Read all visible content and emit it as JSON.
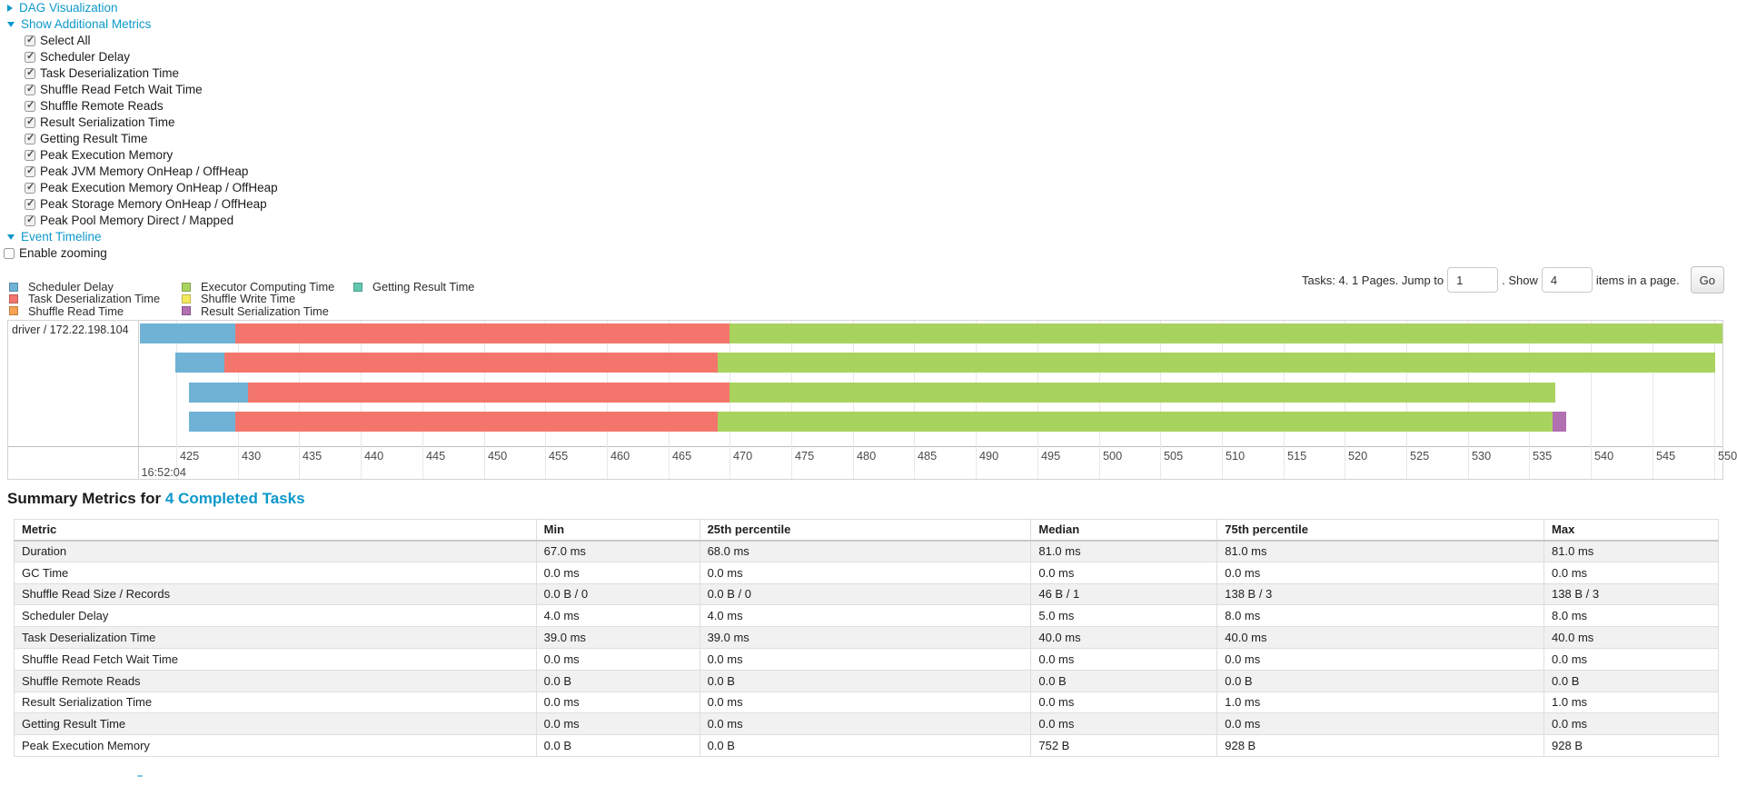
{
  "toggles": {
    "dag": "DAG Visualization",
    "metrics": "Show Additional Metrics",
    "timeline": "Event Timeline"
  },
  "metric_checkboxes": [
    "Select All",
    "Scheduler Delay",
    "Task Deserialization Time",
    "Shuffle Read Fetch Wait Time",
    "Shuffle Remote Reads",
    "Result Serialization Time",
    "Getting Result Time",
    "Peak Execution Memory",
    "Peak JVM Memory OnHeap / OffHeap",
    "Peak Execution Memory OnHeap / OffHeap",
    "Peak Storage Memory OnHeap / OffHeap",
    "Peak Pool Memory Direct / Mapped"
  ],
  "enable_zooming_label": "Enable zooming",
  "legend": {
    "columns": [
      [
        {
          "label": "Scheduler Delay",
          "color": "#6FB2D6"
        },
        {
          "label": "Task Deserialization Time",
          "color": "#F4756C"
        },
        {
          "label": "Shuffle Read Time",
          "color": "#F5A254"
        }
      ],
      [
        {
          "label": "Executor Computing Time",
          "color": "#A9D35F"
        },
        {
          "label": "Shuffle Write Time",
          "color": "#F4E95D"
        },
        {
          "label": "Result Serialization Time",
          "color": "#B26FB2"
        }
      ],
      [
        {
          "label": "Getting Result Time",
          "color": "#62C8B2"
        }
      ]
    ]
  },
  "pagination": {
    "prefix": "Tasks: 4. 1 Pages. Jump to",
    "jump_value": "1",
    "mid": ". Show",
    "show_value": "4",
    "suffix": "items in a page.",
    "go_label": "Go"
  },
  "chart_data": {
    "type": "timeline-gantt",
    "group_label": "driver / 172.22.198.104",
    "axis": {
      "unit": "ms within second 16:52:04",
      "tick_start": 425,
      "tick_end": 550,
      "tick_step": 5,
      "major_label": "16:52:04"
    },
    "colors": {
      "scheduler_delay": "#6FB2D6",
      "task_deserialization": "#F4756C",
      "shuffle_read": "#F5A254",
      "executor_computing": "#A9D35F",
      "shuffle_write": "#F4E95D",
      "result_serialization": "#B26FB2",
      "getting_result": "#62C8B2"
    },
    "tasks": [
      {
        "start": 421.5,
        "segments": [
          {
            "type": "scheduler_delay",
            "end": 429.8
          },
          {
            "type": "task_deserialization",
            "end": 470.0
          },
          {
            "type": "executor_computing",
            "end": 550.8
          }
        ]
      },
      {
        "start": 424.9,
        "segments": [
          {
            "type": "scheduler_delay",
            "end": 428.9
          },
          {
            "type": "task_deserialization",
            "end": 469.0
          },
          {
            "type": "executor_computing",
            "end": 550.1
          }
        ]
      },
      {
        "start": 426.0,
        "segments": [
          {
            "type": "scheduler_delay",
            "end": 430.8
          },
          {
            "type": "task_deserialization",
            "end": 470.0
          },
          {
            "type": "executor_computing",
            "end": 537.1
          }
        ]
      },
      {
        "start": 426.0,
        "segments": [
          {
            "type": "scheduler_delay",
            "end": 429.8
          },
          {
            "type": "task_deserialization",
            "end": 469.0
          },
          {
            "type": "executor_computing",
            "end": 536.9
          },
          {
            "type": "result_serialization",
            "end": 538.0
          }
        ]
      }
    ]
  },
  "summary": {
    "title_prefix": "Summary Metrics for",
    "title_link": "4 Completed Tasks",
    "table": {
      "headers": [
        "Metric",
        "Min",
        "25th percentile",
        "Median",
        "75th percentile",
        "Max"
      ],
      "rows": [
        [
          "Duration",
          "67.0 ms",
          "68.0 ms",
          "81.0 ms",
          "81.0 ms",
          "81.0 ms"
        ],
        [
          "GC Time",
          "0.0 ms",
          "0.0 ms",
          "0.0 ms",
          "0.0 ms",
          "0.0 ms"
        ],
        [
          "Shuffle Read Size / Records",
          "0.0 B / 0",
          "0.0 B / 0",
          "46 B / 1",
          "138 B / 3",
          "138 B / 3"
        ],
        [
          "Scheduler Delay",
          "4.0 ms",
          "4.0 ms",
          "5.0 ms",
          "8.0 ms",
          "8.0 ms"
        ],
        [
          "Task Deserialization Time",
          "39.0 ms",
          "39.0 ms",
          "40.0 ms",
          "40.0 ms",
          "40.0 ms"
        ],
        [
          "Shuffle Read Fetch Wait Time",
          "0.0 ms",
          "0.0 ms",
          "0.0 ms",
          "0.0 ms",
          "0.0 ms"
        ],
        [
          "Shuffle Remote Reads",
          "0.0 B",
          "0.0 B",
          "0.0 B",
          "0.0 B",
          "0.0 B"
        ],
        [
          "Result Serialization Time",
          "0.0 ms",
          "0.0 ms",
          "0.0 ms",
          "1.0 ms",
          "1.0 ms"
        ],
        [
          "Getting Result Time",
          "0.0 ms",
          "0.0 ms",
          "0.0 ms",
          "0.0 ms",
          "0.0 ms"
        ],
        [
          "Peak Execution Memory",
          "0.0 B",
          "0.0 B",
          "752 B",
          "928 B",
          "928 B"
        ]
      ]
    }
  }
}
